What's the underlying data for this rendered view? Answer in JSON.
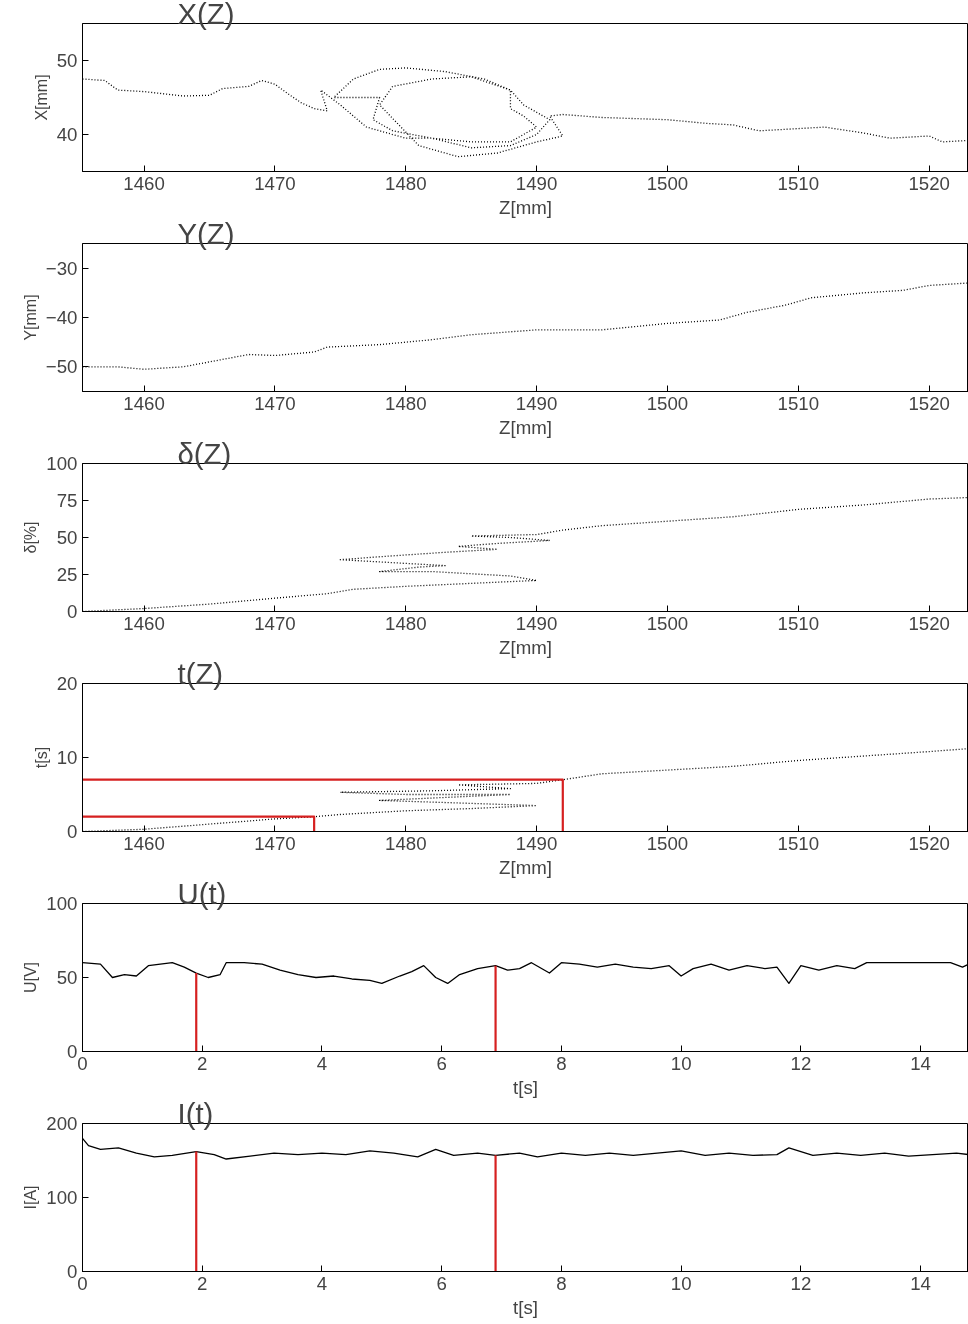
{
  "chart_data": [
    {
      "type": "line",
      "title": "X(Z)",
      "xlabel": "Z[mm]",
      "ylabel": "X[mm]",
      "xlim": [
        1455.3,
        1523
      ],
      "xticks": [
        1460,
        1470,
        1480,
        1490,
        1500,
        1510,
        1520
      ],
      "ylim": [
        35,
        55
      ],
      "yticks": [
        40,
        50
      ],
      "line_style": "dotted",
      "series": [
        {
          "color": "#000000",
          "x": [
            1455.3,
            1457,
            1458,
            1460,
            1463,
            1465,
            1466,
            1468,
            1469,
            1470,
            1471,
            1472,
            1473,
            1474,
            1473.5,
            1475,
            1477,
            1480,
            1482,
            1485,
            1488,
            1490,
            1491,
            1490,
            1489,
            1488,
            1486,
            1483,
            1480,
            1478,
            1476,
            1474.5,
            1478,
            1477.5,
            1479,
            1482,
            1485,
            1488,
            1490,
            1489,
            1488,
            1488,
            1485,
            1482,
            1479,
            1478,
            1481,
            1484,
            1487,
            1490,
            1492,
            1491,
            1492,
            1495,
            1500,
            1503,
            1505,
            1507,
            1510,
            1512,
            1515,
            1517,
            1520,
            1521,
            1523
          ],
          "values": [
            47.5,
            47.3,
            46,
            45.8,
            45.2,
            45.3,
            46.2,
            46.5,
            47.3,
            46.8,
            45.5,
            44.3,
            43.5,
            43.2,
            46,
            44,
            41,
            39.5,
            39.5,
            38.2,
            38.5,
            40,
            42,
            43,
            44,
            46,
            47.5,
            48.5,
            49,
            48.8,
            47.5,
            45,
            45,
            42,
            40.5,
            39.5,
            39,
            39,
            41,
            42.5,
            43.5,
            46,
            47.8,
            47.5,
            46.5,
            44,
            38.5,
            37,
            37.5,
            39,
            39.8,
            42.5,
            42.7,
            42.3,
            42,
            41.5,
            41.3,
            40.5,
            40.8,
            41,
            40.2,
            39.5,
            39.8,
            39,
            39.2
          ]
        }
      ]
    },
    {
      "type": "line",
      "title": "Y(Z)",
      "xlabel": "Z[mm]",
      "ylabel": "Y[mm]",
      "xlim": [
        1455.3,
        1523
      ],
      "xticks": [
        1460,
        1470,
        1480,
        1490,
        1500,
        1510,
        1520
      ],
      "ylim": [
        -55,
        -25
      ],
      "yticks": [
        -50,
        -40,
        -30
      ],
      "line_style": "dotted",
      "series": [
        {
          "color": "#000000",
          "x": [
            1455.3,
            1458,
            1460,
            1463,
            1465,
            1468,
            1470,
            1473,
            1474,
            1478,
            1482,
            1485,
            1490,
            1495,
            1500,
            1504,
            1506,
            1509,
            1511,
            1515,
            1518,
            1520,
            1523
          ],
          "values": [
            -50,
            -50,
            -50.5,
            -50,
            -49,
            -47.5,
            -47.7,
            -47,
            -46,
            -45.5,
            -44.5,
            -43.5,
            -42.5,
            -42.5,
            -41.2,
            -40.5,
            -39,
            -37.5,
            -36,
            -35,
            -34.5,
            -33.5,
            -33
          ]
        }
      ]
    },
    {
      "type": "line",
      "title": "δ(Z)",
      "xlabel": "Z[mm]",
      "ylabel": "δ[%]",
      "xlim": [
        1455.3,
        1523
      ],
      "xticks": [
        1460,
        1470,
        1480,
        1490,
        1500,
        1510,
        1520
      ],
      "ylim": [
        0,
        100
      ],
      "yticks": [
        0,
        25,
        50,
        75,
        100
      ],
      "line_style": "dotted",
      "series": [
        {
          "color": "#000000",
          "x": [
            1455.3,
            1460,
            1465,
            1470,
            1474,
            1476,
            1480,
            1485,
            1490,
            1488,
            1482,
            1478,
            1481,
            1483,
            1479,
            1475,
            1478,
            1483,
            1487,
            1484,
            1487,
            1491,
            1488,
            1485,
            1490,
            1492,
            1495,
            1500,
            1505,
            1510,
            1515,
            1520,
            1523
          ],
          "values": [
            0,
            2,
            5,
            9,
            12,
            15,
            17,
            19,
            21,
            24,
            27,
            27,
            30,
            31,
            33,
            35,
            37,
            40,
            42,
            44,
            46,
            48,
            50,
            51,
            52,
            55,
            58,
            61,
            64,
            69,
            72,
            76,
            77
          ]
        }
      ]
    },
    {
      "type": "line",
      "title": "t(Z)",
      "xlabel": "Z[mm]",
      "ylabel": "t[s]",
      "xlim": [
        1455.3,
        1523
      ],
      "xticks": [
        1460,
        1470,
        1480,
        1490,
        1500,
        1510,
        1520
      ],
      "ylim": [
        0,
        20
      ],
      "yticks": [
        0,
        10,
        20
      ],
      "line_style": "dotted",
      "series": [
        {
          "color": "#000000",
          "x": [
            1455.3,
            1460,
            1465,
            1470,
            1473,
            1475,
            1480,
            1485,
            1490,
            1485,
            1478,
            1483,
            1488,
            1480,
            1475,
            1482,
            1488,
            1484,
            1490,
            1492,
            1495,
            1500,
            1505,
            1510,
            1515,
            1520,
            1523
          ],
          "values": [
            0,
            0.3,
            1.0,
            1.7,
            2.0,
            2.3,
            2.8,
            3.1,
            3.5,
            3.8,
            4.2,
            4.6,
            5.0,
            5.0,
            5.3,
            5.5,
            5.8,
            6.3,
            6.5,
            7.0,
            7.8,
            8.3,
            8.8,
            9.6,
            10.2,
            10.8,
            11.2
          ]
        },
        {
          "color": "#d62020",
          "line_style": "solid",
          "x": [
            1455.3,
            1492,
            1492
          ],
          "values": [
            7,
            7,
            0
          ]
        },
        {
          "color": "#d62020",
          "line_style": "solid",
          "x": [
            1455.3,
            1473,
            1473
          ],
          "values": [
            2,
            2,
            0
          ]
        }
      ]
    },
    {
      "type": "line",
      "title": "U(t)",
      "xlabel": "t[s]",
      "ylabel": "U[V]",
      "xlim": [
        0,
        14.8
      ],
      "xticks": [
        0,
        2,
        4,
        6,
        8,
        10,
        12,
        14
      ],
      "ylim": [
        0,
        100
      ],
      "yticks": [
        0,
        50,
        100
      ],
      "line_style": "solid",
      "series": [
        {
          "color": "#000000",
          "x": [
            0,
            0.3,
            0.5,
            0.7,
            0.9,
            1.1,
            1.3,
            1.5,
            1.7,
            1.9,
            2.1,
            2.3,
            2.4,
            2.7,
            3.0,
            3.3,
            3.6,
            3.9,
            4.2,
            4.5,
            4.8,
            5.0,
            5.3,
            5.5,
            5.7,
            5.9,
            6.1,
            6.3,
            6.6,
            6.9,
            7.1,
            7.3,
            7.5,
            7.8,
            8.0,
            8.3,
            8.6,
            8.9,
            9.2,
            9.5,
            9.8,
            10.0,
            10.2,
            10.5,
            10.8,
            11.1,
            11.4,
            11.6,
            11.8,
            12.0,
            12.3,
            12.6,
            12.9,
            13.1,
            13.5,
            14.0,
            14.5,
            14.7,
            14.8
          ],
          "values": [
            60,
            59,
            50,
            52,
            51,
            58,
            59,
            60,
            57,
            53,
            50,
            52,
            60,
            60,
            59,
            55,
            52,
            50,
            51,
            49,
            48,
            46,
            51,
            54,
            58,
            50,
            46,
            52,
            56,
            58,
            55,
            56,
            60,
            53,
            60,
            59,
            57,
            59,
            57,
            56,
            58,
            51,
            56,
            59,
            55,
            58,
            56,
            57,
            46,
            58,
            55,
            58,
            56,
            60,
            60,
            60,
            60,
            57,
            59
          ]
        },
        {
          "color": "#d62020",
          "x": [
            1.9,
            1.9
          ],
          "values": [
            0,
            53
          ]
        },
        {
          "color": "#d62020",
          "x": [
            6.9,
            6.9
          ],
          "values": [
            0,
            58
          ]
        }
      ]
    },
    {
      "type": "line",
      "title": "I(t)",
      "xlabel": "t[s]",
      "ylabel": "I[A]",
      "xlim": [
        0,
        14.8
      ],
      "xticks": [
        0,
        2,
        4,
        6,
        8,
        10,
        12,
        14
      ],
      "ylim": [
        0,
        200
      ],
      "yticks": [
        0,
        100,
        200
      ],
      "line_style": "solid",
      "series": [
        {
          "color": "#000000",
          "x": [
            0,
            0.1,
            0.3,
            0.6,
            0.9,
            1.2,
            1.5,
            1.9,
            2.2,
            2.4,
            2.8,
            3.2,
            3.6,
            4.0,
            4.4,
            4.8,
            5.2,
            5.6,
            5.9,
            6.2,
            6.6,
            6.9,
            7.3,
            7.6,
            8.0,
            8.4,
            8.8,
            9.2,
            9.6,
            10.0,
            10.4,
            10.8,
            11.2,
            11.6,
            11.8,
            12.2,
            12.6,
            13.0,
            13.4,
            13.8,
            14.2,
            14.6,
            14.8
          ],
          "values": [
            180,
            170,
            165,
            167,
            160,
            155,
            157,
            162,
            158,
            152,
            156,
            160,
            158,
            160,
            158,
            163,
            160,
            155,
            165,
            157,
            160,
            157,
            160,
            155,
            160,
            157,
            160,
            157,
            160,
            163,
            157,
            160,
            157,
            158,
            167,
            157,
            160,
            157,
            160,
            156,
            158,
            160,
            158
          ]
        },
        {
          "color": "#d62020",
          "x": [
            1.9,
            1.9
          ],
          "values": [
            0,
            162
          ]
        },
        {
          "color": "#d62020",
          "x": [
            6.9,
            6.9
          ],
          "values": [
            0,
            157
          ]
        }
      ]
    }
  ]
}
